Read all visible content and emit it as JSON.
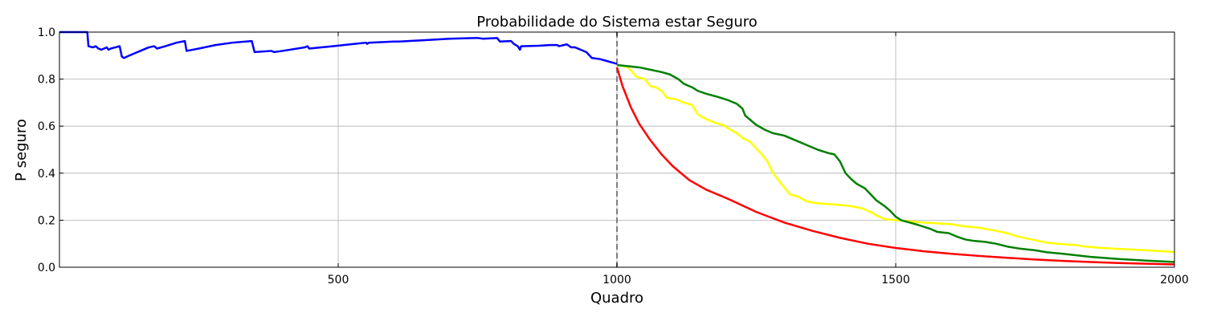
{
  "chart_data": {
    "type": "line",
    "title": "Probabilidade do Sistema estar Seguro",
    "xlabel": "Quadro",
    "ylabel": "P seguro",
    "xlim": [
      0,
      2000
    ],
    "ylim": [
      0,
      1.0
    ],
    "xticks": [
      500,
      1000,
      1500,
      2000
    ],
    "yticks": [
      0.0,
      0.2,
      0.4,
      0.6,
      0.8,
      1.0
    ],
    "xtick_labels": [
      "500",
      "1000",
      "1500",
      "2000"
    ],
    "ytick_labels": [
      "0.0",
      "0.2",
      "0.4",
      "0.6",
      "0.8",
      "1.0"
    ],
    "grid": true,
    "vline": {
      "x": 1000,
      "color": "#808080",
      "style": "dashed"
    },
    "series": [
      {
        "color": "#0000ff",
        "points": [
          [
            0,
            1.0
          ],
          [
            50,
            1.0
          ],
          [
            52,
            0.94
          ],
          [
            60,
            0.935
          ],
          [
            65,
            0.94
          ],
          [
            70,
            0.93
          ],
          [
            75,
            0.925
          ],
          [
            80,
            0.93
          ],
          [
            85,
            0.935
          ],
          [
            88,
            0.925
          ],
          [
            92,
            0.93
          ],
          [
            100,
            0.935
          ],
          [
            108,
            0.94
          ],
          [
            112,
            0.895
          ],
          [
            116,
            0.89
          ],
          [
            125,
            0.9
          ],
          [
            135,
            0.91
          ],
          [
            145,
            0.92
          ],
          [
            160,
            0.935
          ],
          [
            170,
            0.94
          ],
          [
            175,
            0.93
          ],
          [
            190,
            0.94
          ],
          [
            210,
            0.955
          ],
          [
            225,
            0.962
          ],
          [
            228,
            0.92
          ],
          [
            250,
            0.93
          ],
          [
            280,
            0.945
          ],
          [
            310,
            0.955
          ],
          [
            345,
            0.962
          ],
          [
            350,
            0.915
          ],
          [
            380,
            0.92
          ],
          [
            385,
            0.915
          ],
          [
            400,
            0.92
          ],
          [
            440,
            0.935
          ],
          [
            445,
            0.94
          ],
          [
            448,
            0.93
          ],
          [
            490,
            0.94
          ],
          [
            530,
            0.95
          ],
          [
            550,
            0.955
          ],
          [
            552,
            0.95
          ],
          [
            555,
            0.955
          ],
          [
            600,
            0.96
          ],
          [
            610,
            0.96
          ],
          [
            650,
            0.965
          ],
          [
            700,
            0.972
          ],
          [
            745,
            0.975
          ],
          [
            750,
            0.975
          ],
          [
            760,
            0.972
          ],
          [
            785,
            0.975
          ],
          [
            790,
            0.96
          ],
          [
            810,
            0.962
          ],
          [
            815,
            0.95
          ],
          [
            822,
            0.94
          ],
          [
            826,
            0.925
          ],
          [
            828,
            0.94
          ],
          [
            860,
            0.942
          ],
          [
            880,
            0.945
          ],
          [
            893,
            0.945
          ],
          [
            896,
            0.94
          ],
          [
            910,
            0.948
          ],
          [
            918,
            0.935
          ],
          [
            925,
            0.935
          ],
          [
            935,
            0.925
          ],
          [
            945,
            0.915
          ],
          [
            955,
            0.89
          ],
          [
            970,
            0.885
          ],
          [
            985,
            0.875
          ],
          [
            1000,
            0.865
          ]
        ]
      },
      {
        "color": "#ff0000",
        "points": [
          [
            1000,
            0.85
          ],
          [
            1010,
            0.77
          ],
          [
            1025,
            0.68
          ],
          [
            1040,
            0.61
          ],
          [
            1060,
            0.54
          ],
          [
            1080,
            0.48
          ],
          [
            1100,
            0.43
          ],
          [
            1130,
            0.37
          ],
          [
            1160,
            0.33
          ],
          [
            1200,
            0.29
          ],
          [
            1250,
            0.235
          ],
          [
            1300,
            0.19
          ],
          [
            1350,
            0.155
          ],
          [
            1400,
            0.125
          ],
          [
            1450,
            0.1
          ],
          [
            1500,
            0.082
          ],
          [
            1550,
            0.068
          ],
          [
            1600,
            0.057
          ],
          [
            1650,
            0.048
          ],
          [
            1700,
            0.04
          ],
          [
            1750,
            0.033
          ],
          [
            1800,
            0.027
          ],
          [
            1850,
            0.022
          ],
          [
            1900,
            0.018
          ],
          [
            1950,
            0.015
          ],
          [
            2000,
            0.012
          ]
        ]
      },
      {
        "color": "#ffff00",
        "points": [
          [
            1000,
            0.86
          ],
          [
            1020,
            0.85
          ],
          [
            1035,
            0.81
          ],
          [
            1050,
            0.8
          ],
          [
            1060,
            0.77
          ],
          [
            1070,
            0.765
          ],
          [
            1080,
            0.75
          ],
          [
            1090,
            0.72
          ],
          [
            1105,
            0.715
          ],
          [
            1120,
            0.7
          ],
          [
            1135,
            0.69
          ],
          [
            1145,
            0.65
          ],
          [
            1160,
            0.63
          ],
          [
            1175,
            0.615
          ],
          [
            1190,
            0.605
          ],
          [
            1200,
            0.59
          ],
          [
            1215,
            0.57
          ],
          [
            1225,
            0.55
          ],
          [
            1238,
            0.535
          ],
          [
            1248,
            0.51
          ],
          [
            1260,
            0.48
          ],
          [
            1270,
            0.45
          ],
          [
            1280,
            0.4
          ],
          [
            1290,
            0.37
          ],
          [
            1300,
            0.34
          ],
          [
            1310,
            0.31
          ],
          [
            1325,
            0.3
          ],
          [
            1340,
            0.28
          ],
          [
            1360,
            0.272
          ],
          [
            1400,
            0.265
          ],
          [
            1420,
            0.26
          ],
          [
            1440,
            0.25
          ],
          [
            1455,
            0.235
          ],
          [
            1470,
            0.215
          ],
          [
            1480,
            0.205
          ],
          [
            1500,
            0.2
          ],
          [
            1550,
            0.19
          ],
          [
            1600,
            0.183
          ],
          [
            1620,
            0.175
          ],
          [
            1650,
            0.168
          ],
          [
            1680,
            0.155
          ],
          [
            1700,
            0.145
          ],
          [
            1720,
            0.13
          ],
          [
            1750,
            0.115
          ],
          [
            1770,
            0.105
          ],
          [
            1790,
            0.1
          ],
          [
            1820,
            0.095
          ],
          [
            1840,
            0.088
          ],
          [
            1870,
            0.082
          ],
          [
            1900,
            0.078
          ],
          [
            1950,
            0.072
          ],
          [
            2000,
            0.065
          ]
        ]
      },
      {
        "color": "#008000",
        "points": [
          [
            1000,
            0.86
          ],
          [
            1020,
            0.855
          ],
          [
            1040,
            0.85
          ],
          [
            1060,
            0.84
          ],
          [
            1080,
            0.83
          ],
          [
            1095,
            0.82
          ],
          [
            1110,
            0.8
          ],
          [
            1120,
            0.78
          ],
          [
            1135,
            0.765
          ],
          [
            1145,
            0.75
          ],
          [
            1160,
            0.738
          ],
          [
            1180,
            0.725
          ],
          [
            1200,
            0.71
          ],
          [
            1215,
            0.695
          ],
          [
            1225,
            0.675
          ],
          [
            1230,
            0.645
          ],
          [
            1240,
            0.625
          ],
          [
            1250,
            0.605
          ],
          [
            1265,
            0.585
          ],
          [
            1280,
            0.57
          ],
          [
            1300,
            0.56
          ],
          [
            1315,
            0.545
          ],
          [
            1330,
            0.53
          ],
          [
            1345,
            0.515
          ],
          [
            1360,
            0.5
          ],
          [
            1380,
            0.485
          ],
          [
            1390,
            0.48
          ],
          [
            1400,
            0.45
          ],
          [
            1410,
            0.4
          ],
          [
            1420,
            0.375
          ],
          [
            1430,
            0.355
          ],
          [
            1445,
            0.335
          ],
          [
            1455,
            0.31
          ],
          [
            1465,
            0.285
          ],
          [
            1480,
            0.26
          ],
          [
            1490,
            0.24
          ],
          [
            1500,
            0.215
          ],
          [
            1510,
            0.2
          ],
          [
            1525,
            0.19
          ],
          [
            1540,
            0.18
          ],
          [
            1560,
            0.165
          ],
          [
            1575,
            0.15
          ],
          [
            1595,
            0.145
          ],
          [
            1610,
            0.13
          ],
          [
            1625,
            0.118
          ],
          [
            1640,
            0.112
          ],
          [
            1660,
            0.108
          ],
          [
            1680,
            0.1
          ],
          [
            1700,
            0.088
          ],
          [
            1720,
            0.08
          ],
          [
            1750,
            0.072
          ],
          [
            1770,
            0.064
          ],
          [
            1800,
            0.057
          ],
          [
            1850,
            0.044
          ],
          [
            1900,
            0.035
          ],
          [
            1950,
            0.028
          ],
          [
            2000,
            0.022
          ]
        ]
      }
    ]
  }
}
